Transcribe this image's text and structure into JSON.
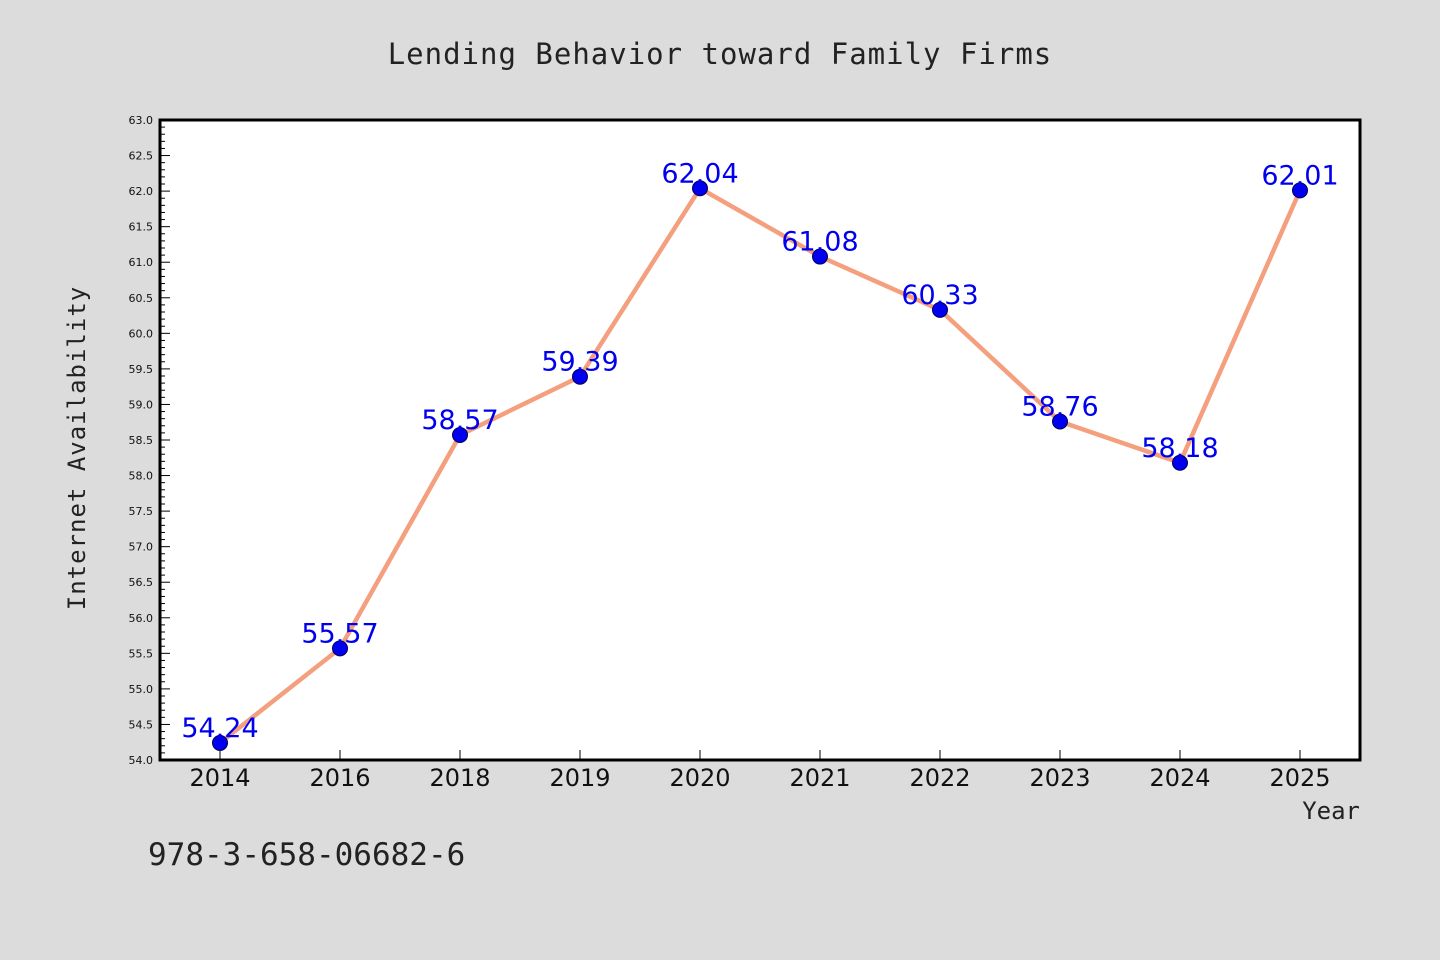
{
  "chart_data": {
    "type": "line",
    "title": "Lending Behavior toward Family Firms",
    "xlabel": "Year",
    "ylabel": "Internet Availability",
    "categories": [
      "2014",
      "2016",
      "2018",
      "2019",
      "2020",
      "2021",
      "2022",
      "2023",
      "2024",
      "2025"
    ],
    "series": [
      {
        "values": [
          54.24,
          55.57,
          58.57,
          59.39,
          62.04,
          61.08,
          60.33,
          58.76,
          58.18,
          62.01
        ],
        "line_color": "#f4a07e",
        "marker_color": "#0000ee",
        "label_color": "#0000ee"
      }
    ],
    "ylim": [
      54.0,
      63.0
    ],
    "yticks": [
      "54.0",
      "54.5",
      "55.0",
      "55.5",
      "56.0",
      "56.5",
      "57.0",
      "57.5",
      "58.0",
      "58.5",
      "59.0",
      "59.5",
      "60.0",
      "60.5",
      "61.0",
      "61.5",
      "62.0",
      "62.5",
      "63.0"
    ],
    "grid": false,
    "legend": "none",
    "annotation": "978-3-658-06682-6"
  },
  "colors": {
    "background": "#dcdcdc",
    "plot_area": "#ffffff",
    "axis": "#000000"
  }
}
